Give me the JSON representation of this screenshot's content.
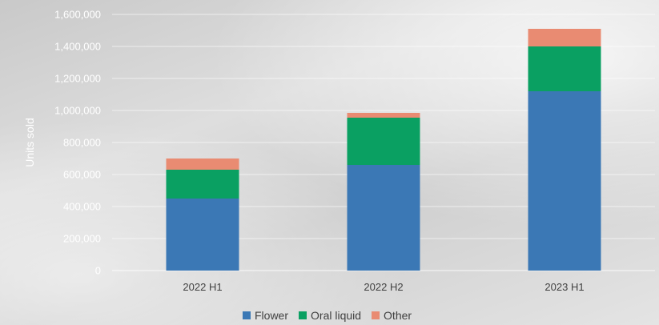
{
  "chart_data": {
    "type": "bar",
    "stacked": true,
    "title": "",
    "xlabel": "",
    "ylabel": "Units sold",
    "ylim": [
      0,
      1600000
    ],
    "yticks": [
      0,
      200000,
      400000,
      600000,
      800000,
      1000000,
      1200000,
      1400000,
      1600000
    ],
    "ytick_labels": [
      "0",
      "200,000",
      "400,000",
      "600,000",
      "800,000",
      "1,000,000",
      "1,200,000",
      "1,400,000",
      "1,600,000"
    ],
    "categories": [
      "2022 H1",
      "2022 H2",
      "2023 H1"
    ],
    "series": [
      {
        "name": "Flower",
        "color": "#3b78b5",
        "values": [
          450000,
          660000,
          1120000
        ]
      },
      {
        "name": "Oral liquid",
        "color": "#0aa062",
        "values": [
          180000,
          295000,
          280000
        ]
      },
      {
        "name": "Other",
        "color": "#e98b72",
        "values": [
          70000,
          30000,
          110000
        ]
      }
    ],
    "grid": true,
    "legend_position": "bottom"
  }
}
